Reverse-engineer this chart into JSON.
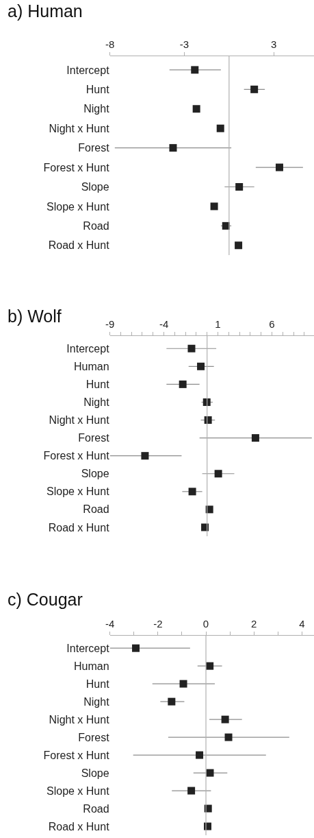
{
  "chart_data": [
    {
      "type": "scatter",
      "title": "a) Human",
      "categories": [
        "Intercept",
        "Hunt",
        "Night",
        "Night x Hunt",
        "Forest",
        "Forest x Hunt",
        "Slope",
        "Slope x Hunt",
        "Road",
        "Road x Hunt"
      ],
      "series": [
        {
          "color": "#222222",
          "values": [
            -2.3,
            1.69,
            -2.19,
            -0.58,
            -3.76,
            3.38,
            0.68,
            -1.0,
            -0.21,
            0.63
          ],
          "errors": [
            [
              -4.0,
              -0.55
            ],
            [
              1.0,
              2.4
            ],
            null,
            null,
            [
              -7.67,
              0.15
            ],
            [
              1.79,
              4.96
            ],
            [
              -0.3,
              1.69
            ],
            null,
            [
              -0.55,
              0.15
            ],
            null
          ]
        }
      ],
      "xlim": [
        -8,
        5.7
      ],
      "xticks": [
        -8,
        -3,
        3
      ],
      "ref_lines": [
        {
          "axis": "x",
          "value": 0,
          "color": "#b0b0b0"
        }
      ],
      "marker": "square",
      "orientation": "horizontal"
    },
    {
      "type": "scatter",
      "title": "b) Wolf",
      "categories": [
        "Intercept",
        "Human",
        "Hunt",
        "Night",
        "Night x Hunt",
        "Forest",
        "Forest x Hunt",
        "Slope",
        "Slope x Hunt",
        "Road",
        "Road x Hunt"
      ],
      "series": [
        {
          "color": "#222222",
          "values": [
            -1.44,
            -0.58,
            -2.25,
            -0.03,
            0.09,
            4.48,
            -5.75,
            1.04,
            -1.37,
            0.22,
            -0.2
          ],
          "errors": [
            [
              -3.76,
              0.85
            ],
            [
              -1.71,
              0.63
            ],
            [
              -3.76,
              -0.7
            ],
            [
              -0.52,
              0.52
            ],
            [
              -0.58,
              0.73
            ],
            [
              -0.7,
              9.7
            ],
            [
              -9.0,
              -2.36
            ],
            [
              -0.45,
              2.52
            ],
            [
              -2.3,
              -0.45
            ],
            null,
            null
          ]
        }
      ],
      "xlim": [
        -9,
        9.9
      ],
      "xticks": [
        -9,
        {
          "value": -8,
          "label": null
        },
        {
          "value": -7,
          "label": null
        },
        {
          "value": -6,
          "label": null
        },
        {
          "value": -5,
          "label": null
        },
        -4,
        {
          "value": -3,
          "label": null
        },
        {
          "value": -2,
          "label": null
        },
        {
          "value": -1,
          "label": null
        },
        {
          "value": 0,
          "label": null
        },
        1,
        {
          "value": 2,
          "label": null
        },
        {
          "value": 3,
          "label": null
        },
        {
          "value": 4,
          "label": null
        },
        {
          "value": 5,
          "label": null
        },
        6,
        {
          "value": 7,
          "label": null
        },
        {
          "value": 8,
          "label": null
        },
        {
          "value": 9,
          "label": null
        }
      ],
      "ref_lines": [
        {
          "axis": "x",
          "value": 0,
          "color": "#b0b0b0"
        }
      ],
      "marker": "square",
      "orientation": "horizontal"
    },
    {
      "type": "scatter",
      "title": "c) Cougar",
      "categories": [
        "Intercept",
        "Human",
        "Hunt",
        "Night",
        "Night x Hunt",
        "Forest",
        "Forest x Hunt",
        "Slope",
        "Slope x Hunt",
        "Road",
        "Road x Hunt"
      ],
      "series": [
        {
          "color": "#222222",
          "values": [
            -2.92,
            0.16,
            -0.94,
            -1.43,
            0.8,
            0.94,
            -0.27,
            0.17,
            -0.61,
            0.09,
            0.07
          ],
          "errors": [
            [
              -4.0,
              -0.66
            ],
            [
              -0.35,
              0.67
            ],
            [
              -2.23,
              0.37
            ],
            [
              -1.9,
              -0.9
            ],
            [
              0.14,
              1.5
            ],
            [
              -1.57,
              3.47
            ],
            [
              -3.03,
              2.5
            ],
            [
              -0.52,
              0.89
            ],
            [
              -1.42,
              0.21
            ],
            null,
            null
          ]
        }
      ],
      "xlim": [
        -4,
        4.5
      ],
      "xticks": [
        -4,
        {
          "value": -3,
          "label": null
        },
        -2,
        {
          "value": -1,
          "label": null
        },
        0,
        {
          "value": 1,
          "label": null
        },
        2,
        {
          "value": 3,
          "label": null
        },
        4
      ],
      "ref_lines": [
        {
          "axis": "x",
          "value": 0,
          "color": "#b0b0b0"
        }
      ],
      "marker": "square",
      "orientation": "horizontal"
    }
  ]
}
